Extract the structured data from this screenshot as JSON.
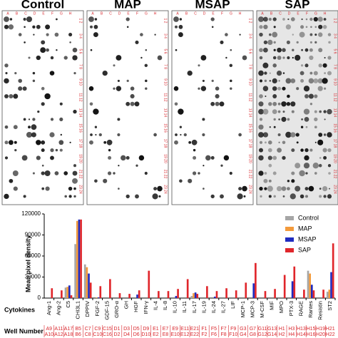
{
  "blot": {
    "panels": [
      "Control",
      "MAP",
      "MSAP",
      "SAP"
    ],
    "col_labels": [
      "A",
      "B",
      "C",
      "D",
      "E",
      "F",
      "G",
      "H"
    ],
    "row_labels": [
      "1 2",
      "3 4",
      "5 6",
      "7 8",
      "9 10",
      "11 12",
      "13 14",
      "15 16",
      "17 18",
      "19 20",
      "21 22",
      "23 24"
    ]
  },
  "chart_data": {
    "type": "bar",
    "y_label": "Mean pixel density",
    "x_label": "Cytokines",
    "well_label": "Well Number",
    "categories": [
      "Ang-1",
      "Ang-2",
      "C5",
      "CHI3L1",
      "DPPIV",
      "FGF-2",
      "GDF-15",
      "GRO-α",
      "GH",
      "HGF",
      "IFN-γ",
      "IL-4",
      "IL-8",
      "IL-10",
      "IL-11",
      "IL-17",
      "IL-19",
      "IL-24",
      "IL-27",
      "LIF",
      "MCP-1",
      "MCP-3",
      "M-CSF",
      "MIF",
      "MPO",
      "PTX-3",
      "RAGE",
      "Rantes",
      "Resistin",
      "ST2"
    ],
    "wells": [
      [
        "A9",
        "A10"
      ],
      [
        "A11",
        "A12"
      ],
      [
        "A17",
        "A18"
      ],
      [
        "B5",
        "B6"
      ],
      [
        "C7",
        "C8"
      ],
      [
        "C9",
        "C10"
      ],
      [
        "C15",
        "C16"
      ],
      [
        "D1",
        "D2"
      ],
      [
        "D3",
        "D4"
      ],
      [
        "D5",
        "D6"
      ],
      [
        "D9",
        "D10"
      ],
      [
        "E1",
        "E2"
      ],
      [
        "E7",
        "E8"
      ],
      [
        "E9",
        "E10"
      ],
      [
        "E11",
        "E12"
      ],
      [
        "E21",
        "E22"
      ],
      [
        "F1",
        "F2"
      ],
      [
        "F5",
        "F6"
      ],
      [
        "F7",
        "F8"
      ],
      [
        "F9",
        "F10"
      ],
      [
        "G3",
        "G4"
      ],
      [
        "G7",
        "G8"
      ],
      [
        "G11",
        "G12"
      ],
      [
        "G13",
        "G14"
      ],
      [
        "H1",
        "H2"
      ],
      [
        "H3",
        "H4"
      ],
      [
        "H13",
        "H14"
      ],
      [
        "H15",
        "H16"
      ],
      [
        "H19",
        "H20"
      ],
      [
        "H21",
        "H22"
      ]
    ],
    "series": [
      {
        "name": "Control",
        "color": "#a6a6a6",
        "values": [
          0,
          0,
          15000,
          77000,
          48000,
          0,
          0,
          0,
          0,
          0,
          0,
          0,
          0,
          0,
          0,
          3000,
          0,
          0,
          0,
          0,
          0,
          0,
          0,
          0,
          0,
          0,
          0,
          39000,
          0,
          9000
        ]
      },
      {
        "name": "MAP",
        "color": "#f39a3c",
        "values": [
          0,
          0,
          16000,
          110000,
          44000,
          1000,
          0,
          0,
          0,
          0,
          0,
          0,
          0,
          0,
          0,
          7000,
          0,
          0,
          0,
          0,
          0,
          0,
          0,
          0,
          0,
          0,
          0,
          35000,
          0,
          12000
        ]
      },
      {
        "name": "MSAP",
        "color": "#1f2bbf",
        "values": [
          0,
          0,
          18000,
          112000,
          35000,
          1000,
          0,
          0,
          0,
          5000,
          0,
          0,
          0,
          3000,
          0,
          8000,
          0,
          2000,
          0,
          0,
          0,
          21000,
          0,
          0,
          0,
          24000,
          0,
          19000,
          0,
          37000
        ]
      },
      {
        "name": "SAP",
        "color": "#e0262b",
        "values": [
          14000,
          11000,
          4000,
          112000,
          22000,
          17000,
          27000,
          7000,
          6000,
          11000,
          39000,
          10000,
          10000,
          13000,
          27000,
          6000,
          17000,
          10000,
          14000,
          11000,
          22000,
          50000,
          10000,
          13000,
          33000,
          45000,
          12000,
          11000,
          12000,
          78000
        ]
      }
    ],
    "ylim": [
      0,
      120000
    ],
    "yticks": [
      0,
      30000,
      60000,
      90000,
      120000
    ],
    "legend": "upper-right"
  }
}
